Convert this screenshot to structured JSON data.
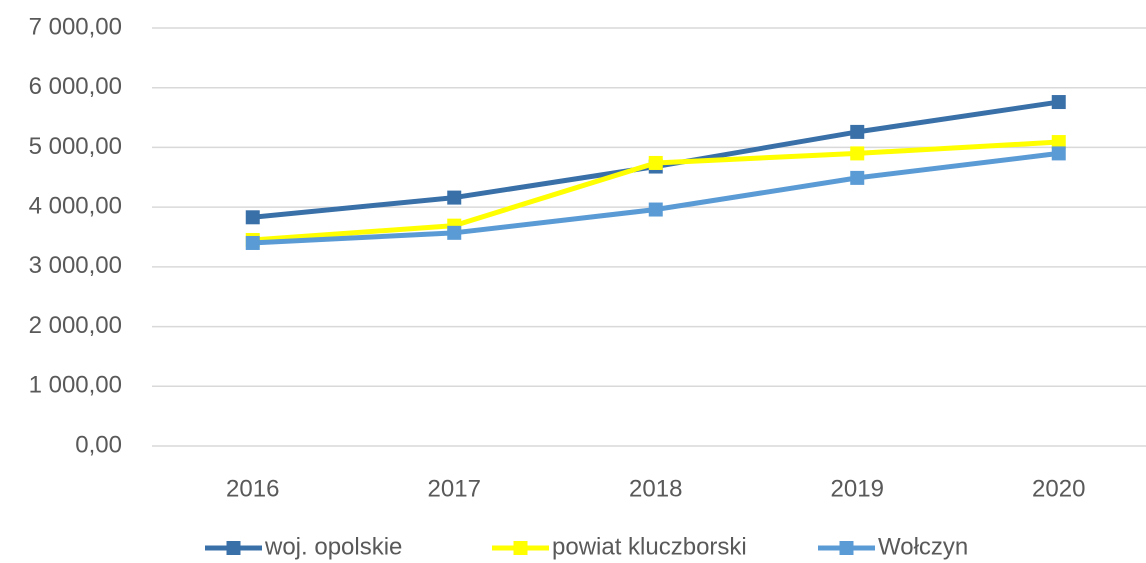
{
  "chart_data": {
    "type": "line",
    "categories": [
      "2016",
      "2017",
      "2018",
      "2019",
      "2020"
    ],
    "series": [
      {
        "name": "woj. opolskie",
        "color": "#3a70a8",
        "values": [
          3830,
          4160,
          4680,
          5260,
          5760
        ]
      },
      {
        "name": "powiat kluczborski",
        "color": "#ffff00",
        "values": [
          3450,
          3690,
          4740,
          4900,
          5090
        ]
      },
      {
        "name": "Wołczyn",
        "color": "#5b9bd5",
        "values": [
          3400,
          3570,
          3960,
          4490,
          4900
        ]
      }
    ],
    "ylim": [
      0,
      7000
    ],
    "yticks": [
      {
        "value": 0,
        "label": "0,00"
      },
      {
        "value": 1000,
        "label": "1 000,00"
      },
      {
        "value": 2000,
        "label": "2 000,00"
      },
      {
        "value": 3000,
        "label": "3 000,00"
      },
      {
        "value": 4000,
        "label": "4 000,00"
      },
      {
        "value": 5000,
        "label": "5 000,00"
      },
      {
        "value": 6000,
        "label": "6 000,00"
      },
      {
        "value": 7000,
        "label": "7 000,00"
      }
    ],
    "grid": true,
    "legend": "bottom"
  }
}
